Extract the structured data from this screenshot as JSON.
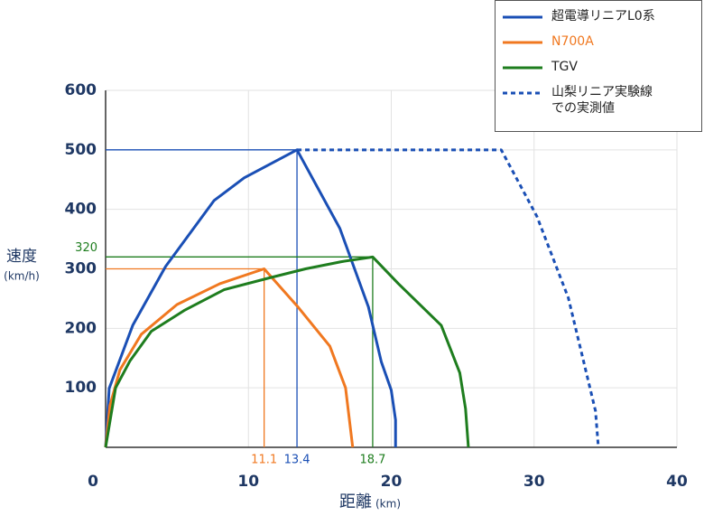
{
  "chart_data": {
    "type": "line",
    "x_label": "距離",
    "x_unit": "(km)",
    "y_label": "速度",
    "y_unit": "(km/h)",
    "xlim": [
      0,
      40
    ],
    "ylim": [
      0,
      600
    ],
    "xticks": [
      0,
      10,
      20,
      30,
      40
    ],
    "yticks": [
      100,
      200,
      300,
      400,
      500,
      600
    ],
    "grid": true,
    "series": [
      {
        "name": "超電導リニアL0系",
        "color": "#1a4fb5",
        "dash": false,
        "x": [
          0,
          0.25,
          1.9,
          4.2,
          7.6,
          9.7,
          13.4,
          16.4,
          18.4,
          19.3,
          20.0,
          20.3,
          20.3
        ],
        "values": [
          0,
          99,
          205,
          304,
          415,
          453,
          500,
          368,
          236,
          144,
          96,
          46,
          0
        ]
      },
      {
        "name": "N700A",
        "color": "#f07820",
        "dash": false,
        "x": [
          0,
          0.3,
          1,
          2.5,
          5,
          8,
          11.1,
          13.5,
          15.7,
          16.8,
          17.3
        ],
        "values": [
          0,
          70,
          130,
          190,
          240,
          275,
          300,
          235,
          170,
          100,
          0
        ]
      },
      {
        "name": "TGV",
        "color": "#1e7d1e",
        "dash": false,
        "x": [
          0,
          0.7,
          1.7,
          3.2,
          5.5,
          8.3,
          11.5,
          14,
          16.5,
          18.7,
          20.5,
          23.5,
          24.8,
          25.2,
          25.4
        ],
        "values": [
          0,
          100,
          145,
          195,
          230,
          265,
          285,
          300,
          312,
          320,
          275,
          205,
          125,
          65,
          0
        ]
      },
      {
        "name": "山梨リニア実験線での実測値",
        "color": "#1a4fb5",
        "dash": true,
        "x": [
          13.4,
          27.7,
          30.2,
          32.4,
          34.3,
          34.5
        ],
        "values": [
          500,
          500,
          388,
          251,
          61,
          0
        ]
      }
    ],
    "reference_lines": [
      {
        "x": 11.1,
        "y": 300,
        "color": "#f07820",
        "label_y": false
      },
      {
        "x": 13.4,
        "y": 500,
        "color": "#1a4fb5",
        "label_y": false
      },
      {
        "x": 18.7,
        "y": 320,
        "color": "#1e7d1e",
        "label_y": true
      }
    ]
  }
}
